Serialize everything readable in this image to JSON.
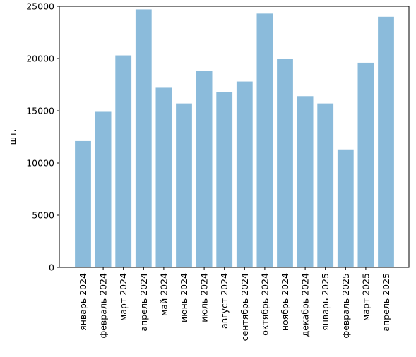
{
  "chart_data": {
    "type": "bar",
    "categories": [
      "январь 2024",
      "февраль 2024",
      "март 2024",
      "апрель 2024",
      "май 2024",
      "июнь 2024",
      "июль 2024",
      "август 2024",
      "сентябрь 2024",
      "октябрь 2024",
      "ноябрь 2024",
      "декабрь 2024",
      "январь 2025",
      "февраль 2025",
      "март 2025",
      "апрель 2025"
    ],
    "values": [
      12100,
      14900,
      20300,
      24700,
      17200,
      15700,
      18800,
      16800,
      17800,
      24300,
      20000,
      16400,
      15700,
      11300,
      19600,
      24000
    ],
    "title": "",
    "xlabel": "",
    "ylabel": "шт.",
    "ylim": [
      0,
      25000
    ],
    "yticks": [
      0,
      5000,
      10000,
      15000,
      20000,
      25000
    ],
    "bar_color": "#8bbbdb",
    "grid": false,
    "legend": "none"
  }
}
